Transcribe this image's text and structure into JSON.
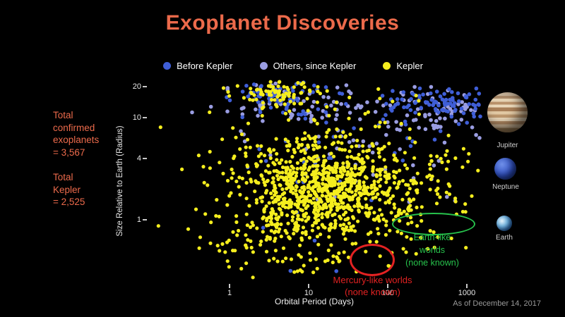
{
  "title": "Exoplanet Discoveries",
  "theme": {
    "background": "#000000",
    "accent": "#ec6a4b",
    "text": "#ffffff",
    "muted": "#9a9a9a",
    "green": "#27c24c",
    "red": "#e32222"
  },
  "legend": {
    "items": [
      {
        "label": "Before Kepler",
        "color": "#3f5ed7"
      },
      {
        "label": "Others, since Kepler",
        "color": "#9a9de2"
      },
      {
        "label": "Kepler",
        "color": "#f5ee1e"
      }
    ]
  },
  "stats": {
    "confirmed_lines": [
      "Total",
      "confirmed",
      "exoplanets",
      "= 3,567"
    ],
    "kepler_lines": [
      "Total",
      "Kepler",
      "= 2,525"
    ]
  },
  "axes": {
    "x_label": "Orbital Period (Days)",
    "y_label": "Size Relative to Earth (Radius)",
    "x_ticks": [
      "1",
      "10",
      "100",
      "1000"
    ],
    "y_ticks": [
      "20",
      "10",
      "4",
      "1"
    ]
  },
  "annotations": {
    "earth_like": {
      "lines": [
        "Earth-like",
        "worlds",
        "(none known)"
      ],
      "color": "#27c24c"
    },
    "mercury_like": {
      "lines": [
        "Mercury-like worlds",
        "(none known)"
      ],
      "color": "#e32222"
    }
  },
  "planets": [
    {
      "name": "Jupiter"
    },
    {
      "name": "Neptune"
    },
    {
      "name": "Earth"
    }
  ],
  "footnote": "As of December 14, 2017",
  "chart_data": {
    "type": "scatter",
    "title": "Exoplanet Discoveries",
    "xlabel": "Orbital Period (Days)",
    "ylabel": "Size Relative to Earth (Radius)",
    "x_scale": "log10",
    "y_scale": "log10",
    "x_ticks": [
      1,
      10,
      100,
      1000
    ],
    "y_ticks": [
      1,
      4,
      10,
      20
    ],
    "xlim": [
      0.15,
      1500
    ],
    "ylim": [
      0.3,
      23
    ],
    "legend_position": "top",
    "grid": false,
    "totals": {
      "confirmed_exoplanets": 3567,
      "kepler": 2525
    },
    "as_of": "December 14, 2017",
    "seed": 20171214,
    "series": [
      {
        "name": "Kepler",
        "color": "#f5ee1e",
        "point_radius": 2.6,
        "clusters": [
          {
            "count": 650,
            "mean_log": [
              1.15,
              0.3
            ],
            "sigma_log": [
              0.5,
              0.22
            ]
          },
          {
            "count": 300,
            "mean_log": [
              1.3,
              0.45
            ],
            "sigma_log": [
              0.85,
              0.38
            ]
          },
          {
            "count": 90,
            "mean_log": [
              0.65,
              1.25
            ],
            "sigma_log": [
              0.3,
              0.09
            ]
          },
          {
            "count": 150,
            "mean_log": [
              2.0,
              0.1
            ],
            "sigma_log": [
              0.6,
              0.3
            ]
          },
          {
            "count": 80,
            "mean_log": [
              0.45,
              -0.25
            ],
            "sigma_log": [
              0.45,
              0.2
            ]
          }
        ]
      },
      {
        "name": "Before Kepler",
        "color": "#3f5ed7",
        "point_radius": 2.8,
        "clusters": [
          {
            "count": 90,
            "mean_log": [
              2.75,
              1.15
            ],
            "sigma_log": [
              0.35,
              0.08
            ]
          },
          {
            "count": 70,
            "mean_log": [
              0.6,
              1.2
            ],
            "sigma_log": [
              0.3,
              0.1
            ]
          },
          {
            "count": 40,
            "mean_log": [
              1.7,
              0.95
            ],
            "sigma_log": [
              0.7,
              0.25
            ]
          },
          {
            "count": 15,
            "mean_log": [
              0.9,
              0.3
            ],
            "sigma_log": [
              0.6,
              0.35
            ]
          }
        ]
      },
      {
        "name": "Others, since Kepler",
        "color": "#9a9de2",
        "point_radius": 2.8,
        "clusters": [
          {
            "count": 80,
            "mean_log": [
              1.0,
              1.1
            ],
            "sigma_log": [
              0.6,
              0.12
            ]
          },
          {
            "count": 60,
            "mean_log": [
              2.6,
              1.05
            ],
            "sigma_log": [
              0.35,
              0.12
            ]
          },
          {
            "count": 50,
            "mean_log": [
              1.6,
              0.7
            ],
            "sigma_log": [
              0.8,
              0.3
            ]
          }
        ]
      }
    ]
  }
}
